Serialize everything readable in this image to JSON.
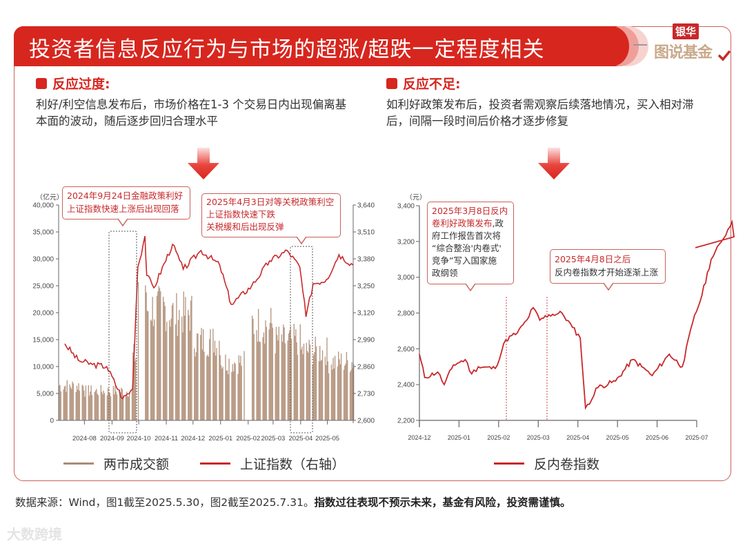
{
  "header": {
    "title": "投资者信息反应行为与市场的超涨/超跌一定程度相关"
  },
  "logo": {
    "top": "银华",
    "bottom": "图说基金"
  },
  "left_section": {
    "title": "反应过度:",
    "description": "利好/利空信息发布后，市场价格在1-3 个交易日内出现偏离基本面的波动，随后逐步回归合理水平"
  },
  "right_section": {
    "title": "反应不足:",
    "description": "如利好政策发布后，投资者需观察后续落地情况，买入相对滞后，间隔一段时间后价格才逐步修复"
  },
  "left_chart": {
    "left_unit": "（亿元）",
    "callout1": {
      "line1": "2024年9月24日金融政策利好",
      "line2": "上证指数快速上涨后出现回落"
    },
    "callout2": {
      "line1": "2025年4月3日对等关税政策利空",
      "line2": "上证指数快速下跌",
      "line3": "关税缓和后出现反弹"
    },
    "legend": {
      "bar": "两市成交额",
      "line": "上证指数（右轴）"
    }
  },
  "right_chart": {
    "unit": "（元）",
    "callout1": {
      "red": "2025年3月8日反内卷利好政策发布",
      "rest1": ",政",
      "rest2": "府工作报告首次将",
      "rest3": "“综合整治'内卷式'",
      "rest4": "竞争”写入国家施",
      "rest5": "政纲领"
    },
    "callout2": {
      "red": "2025年4月8日之后",
      "line2": "反内卷指数才开始逐渐上涨"
    },
    "legend": {
      "line": "反内卷指数"
    }
  },
  "footer": {
    "source": "数据来源：Wind，图1截至2025.5.30，图2截至2025.7.31。",
    "disclaimer": "指数过往表现不预示未来，基金有风险，投资需谨慎。"
  },
  "watermark": "大数跨境",
  "colors": {
    "brand_red": "#d7261e",
    "line_red": "#c8282a",
    "bar_tan": "#b89a85",
    "axis": "#555555"
  },
  "chart_data": [
    {
      "type": "bar+line",
      "title": "两市成交额与上证指数",
      "ylabel_left": "亿元",
      "ylabel_right": "上证指数",
      "ylim_left": [
        0,
        40000
      ],
      "ylim_right": [
        2600,
        3640
      ],
      "yticks_left": [
        "0",
        "5,000",
        "10,000",
        "15,000",
        "20,000",
        "25,000",
        "30,000",
        "35,000",
        "40,000"
      ],
      "yticks_right": [
        "2,600",
        "2,730",
        "2,860",
        "2,990",
        "3,120",
        "3,250",
        "3,380",
        "3,510",
        "3,640"
      ],
      "categories": [
        "2024-08",
        "2024-09",
        "2024-10",
        "2024-11",
        "2024-12",
        "2025-01",
        "2025-02",
        "2025-03",
        "2025-04",
        "2025-05"
      ],
      "series": [
        {
          "name": "两市成交额",
          "type": "bar",
          "unit": "亿元",
          "approx_monthly_avg": [
            5500,
            5500,
            21000,
            20000,
            15000,
            11000,
            18000,
            15000,
            13000,
            11000
          ],
          "peak": 26000
        },
        {
          "name": "上证指数（右轴）",
          "type": "line",
          "points": [
            [
              "2024-07-10",
              2970
            ],
            [
              "2024-07-25",
              2890
            ],
            [
              "2024-08-10",
              2870
            ],
            [
              "2024-08-26",
              2860
            ],
            [
              "2024-09-13",
              2705
            ],
            [
              "2024-09-24",
              2750
            ],
            [
              "2024-09-30",
              3340
            ],
            [
              "2024-10-08",
              3490
            ],
            [
              "2024-10-10",
              3300
            ],
            [
              "2024-10-18",
              3240
            ],
            [
              "2024-11-08",
              3450
            ],
            [
              "2024-11-20",
              3330
            ],
            [
              "2024-12-10",
              3420
            ],
            [
              "2024-12-31",
              3350
            ],
            [
              "2025-01-13",
              3160
            ],
            [
              "2025-02-05",
              3250
            ],
            [
              "2025-02-25",
              3370
            ],
            [
              "2025-03-17",
              3420
            ],
            [
              "2025-03-31",
              3340
            ],
            [
              "2025-04-07",
              3100
            ],
            [
              "2025-04-15",
              3260
            ],
            [
              "2025-04-30",
              3280
            ],
            [
              "2025-05-14",
              3400
            ],
            [
              "2025-05-30",
              3350
            ]
          ]
        }
      ],
      "annotations": [
        "2024年9月24日金融政策利好 上证指数快速上涨后出现回落",
        "2025年4月3日对等关税政策利空 上证指数快速下跌 关税缓和后出现反弹"
      ],
      "legend_position": "bottom"
    },
    {
      "type": "line",
      "title": "反内卷指数",
      "ylabel": "元",
      "ylim": [
        2200,
        3400
      ],
      "yticks": [
        "2,200",
        "2,400",
        "2,600",
        "2,800",
        "3,000",
        "3,200",
        "3,400"
      ],
      "x": [
        "2024-12",
        "2025-01",
        "2025-02",
        "2025-03",
        "2025-04",
        "2025-05",
        "2025-06",
        "2025-07"
      ],
      "series": [
        {
          "name": "反内卷指数",
          "points": [
            [
              "2024-12-01",
              2570
            ],
            [
              "2024-12-05",
              2440
            ],
            [
              "2024-12-15",
              2470
            ],
            [
              "2024-12-20",
              2400
            ],
            [
              "2024-12-27",
              2510
            ],
            [
              "2025-01-05",
              2540
            ],
            [
              "2025-01-10",
              2460
            ],
            [
              "2025-01-15",
              2500
            ],
            [
              "2025-01-28",
              2490
            ],
            [
              "2025-02-05",
              2650
            ],
            [
              "2025-02-14",
              2690
            ],
            [
              "2025-02-21",
              2760
            ],
            [
              "2025-02-26",
              2830
            ],
            [
              "2025-03-03",
              2760
            ],
            [
              "2025-03-10",
              2790
            ],
            [
              "2025-03-20",
              2800
            ],
            [
              "2025-03-28",
              2720
            ],
            [
              "2025-04-03",
              2660
            ],
            [
              "2025-04-07",
              2270
            ],
            [
              "2025-04-10",
              2290
            ],
            [
              "2025-04-15",
              2380
            ],
            [
              "2025-04-30",
              2420
            ],
            [
              "2025-05-13",
              2540
            ],
            [
              "2025-05-20",
              2500
            ],
            [
              "2025-05-28",
              2450
            ],
            [
              "2025-06-10",
              2570
            ],
            [
              "2025-06-20",
              2500
            ],
            [
              "2025-06-28",
              2750
            ],
            [
              "2025-07-05",
              2900
            ],
            [
              "2025-07-12",
              3100
            ],
            [
              "2025-07-20",
              3200
            ],
            [
              "2025-07-28",
              3310
            ],
            [
              "2025-07-31",
              3165
            ]
          ]
        }
      ],
      "annotations": [
        "2025年3月8日反内卷利好政策发布,政府工作报告首次将“综合整治'内卷式'竞争”写入国家施政纲领",
        "2025年4月8日之后 反内卷指数才开始逐渐上涨"
      ],
      "reference_lines": [
        "2025-03-08",
        "2025-04-08"
      ],
      "legend_position": "bottom"
    }
  ]
}
